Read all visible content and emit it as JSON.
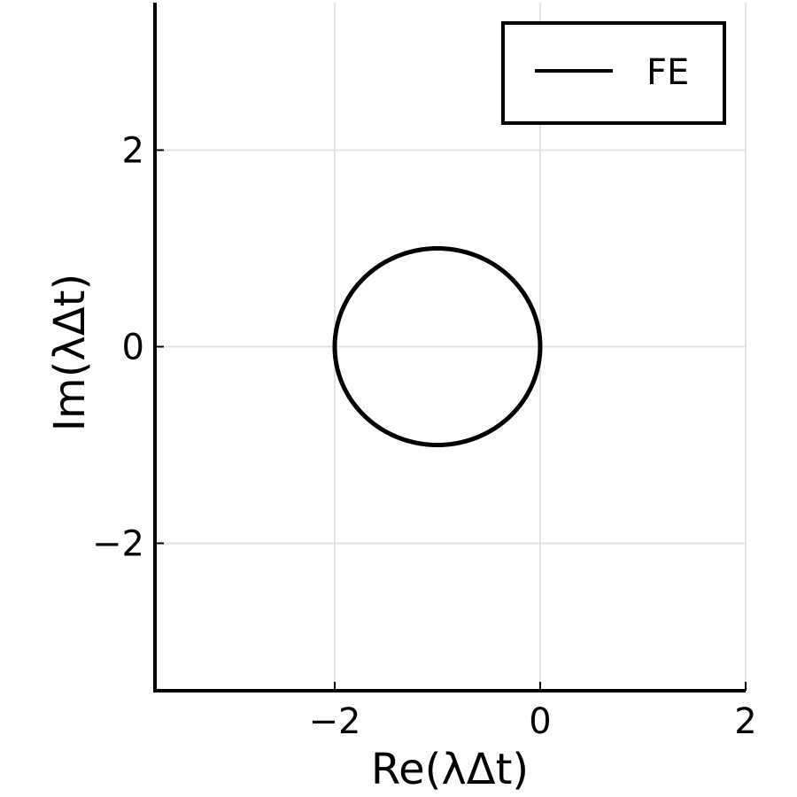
{
  "chart_data": {
    "type": "line",
    "xlabel": "Re(λΔt)",
    "ylabel": "Im(λΔt)",
    "xlim": [
      -3.75,
      2
    ],
    "ylim": [
      -3.5,
      3.5
    ],
    "grid": true,
    "legend_position": "top-right",
    "x_ticks": [
      {
        "value": -2,
        "label": "−2"
      },
      {
        "value": 0,
        "label": "0"
      },
      {
        "value": 2,
        "label": "2"
      }
    ],
    "y_ticks": [
      {
        "value": -2,
        "label": "−2"
      },
      {
        "value": 0,
        "label": "0"
      },
      {
        "value": 2,
        "label": "2"
      }
    ],
    "series": [
      {
        "name": "FE",
        "color": "#000000",
        "shape": "circle",
        "center": [
          -1,
          0
        ],
        "radius": 1
      }
    ]
  }
}
